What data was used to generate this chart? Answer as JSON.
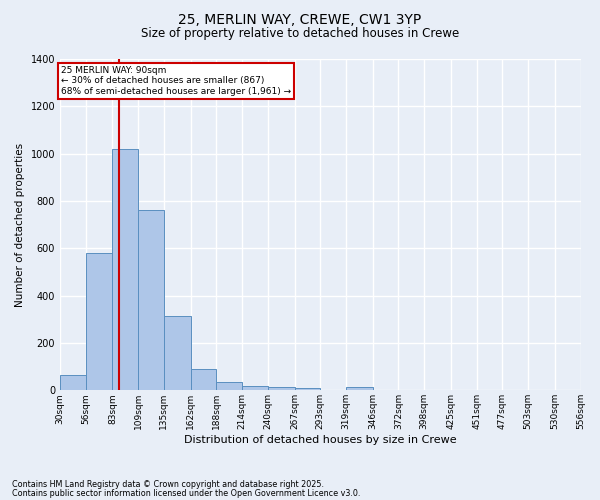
{
  "title_line1": "25, MERLIN WAY, CREWE, CW1 3YP",
  "title_line2": "Size of property relative to detached houses in Crewe",
  "xlabel": "Distribution of detached houses by size in Crewe",
  "ylabel": "Number of detached properties",
  "bin_edges": [
    30,
    56,
    83,
    109,
    135,
    162,
    188,
    214,
    240,
    267,
    293,
    319,
    346,
    372,
    398,
    425,
    451,
    477,
    503,
    530,
    556
  ],
  "bar_heights": [
    65,
    580,
    1020,
    760,
    315,
    90,
    35,
    20,
    15,
    10,
    0,
    15,
    0,
    0,
    0,
    0,
    0,
    0,
    0,
    0
  ],
  "bar_color": "#aec6e8",
  "bar_edgecolor": "#5a8fc0",
  "bg_color": "#e8eef7",
  "grid_color": "#ffffff",
  "property_line_x": 90,
  "property_line_color": "#cc0000",
  "annotation_title": "25 MERLIN WAY: 90sqm",
  "annotation_line2": "← 30% of detached houses are smaller (867)",
  "annotation_line3": "68% of semi-detached houses are larger (1,961) →",
  "annotation_box_color": "#cc0000",
  "annotation_bg": "#ffffff",
  "ylim": [
    0,
    1400
  ],
  "yticks": [
    0,
    200,
    400,
    600,
    800,
    1000,
    1200,
    1400
  ],
  "footnote1": "Contains HM Land Registry data © Crown copyright and database right 2025.",
  "footnote2": "Contains public sector information licensed under the Open Government Licence v3.0."
}
